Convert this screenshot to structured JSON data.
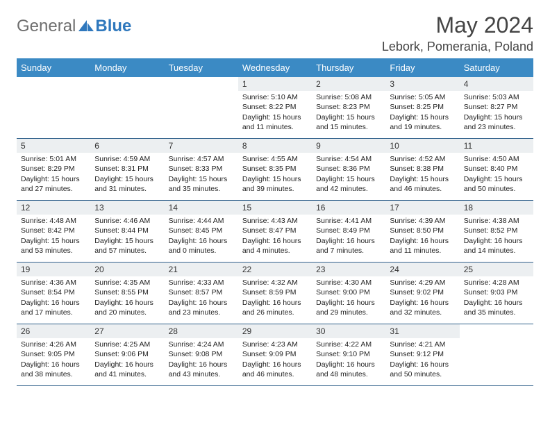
{
  "logo": {
    "general": "General",
    "blue": "Blue"
  },
  "title": "May 2024",
  "location": "Lebork, Pomerania, Poland",
  "colors": {
    "header_bg": "#3b8ac4",
    "daynum_bg": "#eceff1",
    "row_border": "#2f5f8a",
    "logo_gray": "#6e6e6e",
    "logo_blue": "#2f78bd"
  },
  "day_headers": [
    "Sunday",
    "Monday",
    "Tuesday",
    "Wednesday",
    "Thursday",
    "Friday",
    "Saturday"
  ],
  "weeks": [
    [
      {
        "empty": true
      },
      {
        "empty": true
      },
      {
        "empty": true
      },
      {
        "day": "1",
        "sunrise": "Sunrise: 5:10 AM",
        "sunset": "Sunset: 8:22 PM",
        "daylight1": "Daylight: 15 hours",
        "daylight2": "and 11 minutes."
      },
      {
        "day": "2",
        "sunrise": "Sunrise: 5:08 AM",
        "sunset": "Sunset: 8:23 PM",
        "daylight1": "Daylight: 15 hours",
        "daylight2": "and 15 minutes."
      },
      {
        "day": "3",
        "sunrise": "Sunrise: 5:05 AM",
        "sunset": "Sunset: 8:25 PM",
        "daylight1": "Daylight: 15 hours",
        "daylight2": "and 19 minutes."
      },
      {
        "day": "4",
        "sunrise": "Sunrise: 5:03 AM",
        "sunset": "Sunset: 8:27 PM",
        "daylight1": "Daylight: 15 hours",
        "daylight2": "and 23 minutes."
      }
    ],
    [
      {
        "day": "5",
        "sunrise": "Sunrise: 5:01 AM",
        "sunset": "Sunset: 8:29 PM",
        "daylight1": "Daylight: 15 hours",
        "daylight2": "and 27 minutes."
      },
      {
        "day": "6",
        "sunrise": "Sunrise: 4:59 AM",
        "sunset": "Sunset: 8:31 PM",
        "daylight1": "Daylight: 15 hours",
        "daylight2": "and 31 minutes."
      },
      {
        "day": "7",
        "sunrise": "Sunrise: 4:57 AM",
        "sunset": "Sunset: 8:33 PM",
        "daylight1": "Daylight: 15 hours",
        "daylight2": "and 35 minutes."
      },
      {
        "day": "8",
        "sunrise": "Sunrise: 4:55 AM",
        "sunset": "Sunset: 8:35 PM",
        "daylight1": "Daylight: 15 hours",
        "daylight2": "and 39 minutes."
      },
      {
        "day": "9",
        "sunrise": "Sunrise: 4:54 AM",
        "sunset": "Sunset: 8:36 PM",
        "daylight1": "Daylight: 15 hours",
        "daylight2": "and 42 minutes."
      },
      {
        "day": "10",
        "sunrise": "Sunrise: 4:52 AM",
        "sunset": "Sunset: 8:38 PM",
        "daylight1": "Daylight: 15 hours",
        "daylight2": "and 46 minutes."
      },
      {
        "day": "11",
        "sunrise": "Sunrise: 4:50 AM",
        "sunset": "Sunset: 8:40 PM",
        "daylight1": "Daylight: 15 hours",
        "daylight2": "and 50 minutes."
      }
    ],
    [
      {
        "day": "12",
        "sunrise": "Sunrise: 4:48 AM",
        "sunset": "Sunset: 8:42 PM",
        "daylight1": "Daylight: 15 hours",
        "daylight2": "and 53 minutes."
      },
      {
        "day": "13",
        "sunrise": "Sunrise: 4:46 AM",
        "sunset": "Sunset: 8:44 PM",
        "daylight1": "Daylight: 15 hours",
        "daylight2": "and 57 minutes."
      },
      {
        "day": "14",
        "sunrise": "Sunrise: 4:44 AM",
        "sunset": "Sunset: 8:45 PM",
        "daylight1": "Daylight: 16 hours",
        "daylight2": "and 0 minutes."
      },
      {
        "day": "15",
        "sunrise": "Sunrise: 4:43 AM",
        "sunset": "Sunset: 8:47 PM",
        "daylight1": "Daylight: 16 hours",
        "daylight2": "and 4 minutes."
      },
      {
        "day": "16",
        "sunrise": "Sunrise: 4:41 AM",
        "sunset": "Sunset: 8:49 PM",
        "daylight1": "Daylight: 16 hours",
        "daylight2": "and 7 minutes."
      },
      {
        "day": "17",
        "sunrise": "Sunrise: 4:39 AM",
        "sunset": "Sunset: 8:50 PM",
        "daylight1": "Daylight: 16 hours",
        "daylight2": "and 11 minutes."
      },
      {
        "day": "18",
        "sunrise": "Sunrise: 4:38 AM",
        "sunset": "Sunset: 8:52 PM",
        "daylight1": "Daylight: 16 hours",
        "daylight2": "and 14 minutes."
      }
    ],
    [
      {
        "day": "19",
        "sunrise": "Sunrise: 4:36 AM",
        "sunset": "Sunset: 8:54 PM",
        "daylight1": "Daylight: 16 hours",
        "daylight2": "and 17 minutes."
      },
      {
        "day": "20",
        "sunrise": "Sunrise: 4:35 AM",
        "sunset": "Sunset: 8:55 PM",
        "daylight1": "Daylight: 16 hours",
        "daylight2": "and 20 minutes."
      },
      {
        "day": "21",
        "sunrise": "Sunrise: 4:33 AM",
        "sunset": "Sunset: 8:57 PM",
        "daylight1": "Daylight: 16 hours",
        "daylight2": "and 23 minutes."
      },
      {
        "day": "22",
        "sunrise": "Sunrise: 4:32 AM",
        "sunset": "Sunset: 8:59 PM",
        "daylight1": "Daylight: 16 hours",
        "daylight2": "and 26 minutes."
      },
      {
        "day": "23",
        "sunrise": "Sunrise: 4:30 AM",
        "sunset": "Sunset: 9:00 PM",
        "daylight1": "Daylight: 16 hours",
        "daylight2": "and 29 minutes."
      },
      {
        "day": "24",
        "sunrise": "Sunrise: 4:29 AM",
        "sunset": "Sunset: 9:02 PM",
        "daylight1": "Daylight: 16 hours",
        "daylight2": "and 32 minutes."
      },
      {
        "day": "25",
        "sunrise": "Sunrise: 4:28 AM",
        "sunset": "Sunset: 9:03 PM",
        "daylight1": "Daylight: 16 hours",
        "daylight2": "and 35 minutes."
      }
    ],
    [
      {
        "day": "26",
        "sunrise": "Sunrise: 4:26 AM",
        "sunset": "Sunset: 9:05 PM",
        "daylight1": "Daylight: 16 hours",
        "daylight2": "and 38 minutes."
      },
      {
        "day": "27",
        "sunrise": "Sunrise: 4:25 AM",
        "sunset": "Sunset: 9:06 PM",
        "daylight1": "Daylight: 16 hours",
        "daylight2": "and 41 minutes."
      },
      {
        "day": "28",
        "sunrise": "Sunrise: 4:24 AM",
        "sunset": "Sunset: 9:08 PM",
        "daylight1": "Daylight: 16 hours",
        "daylight2": "and 43 minutes."
      },
      {
        "day": "29",
        "sunrise": "Sunrise: 4:23 AM",
        "sunset": "Sunset: 9:09 PM",
        "daylight1": "Daylight: 16 hours",
        "daylight2": "and 46 minutes."
      },
      {
        "day": "30",
        "sunrise": "Sunrise: 4:22 AM",
        "sunset": "Sunset: 9:10 PM",
        "daylight1": "Daylight: 16 hours",
        "daylight2": "and 48 minutes."
      },
      {
        "day": "31",
        "sunrise": "Sunrise: 4:21 AM",
        "sunset": "Sunset: 9:12 PM",
        "daylight1": "Daylight: 16 hours",
        "daylight2": "and 50 minutes."
      },
      {
        "empty": true
      }
    ]
  ]
}
